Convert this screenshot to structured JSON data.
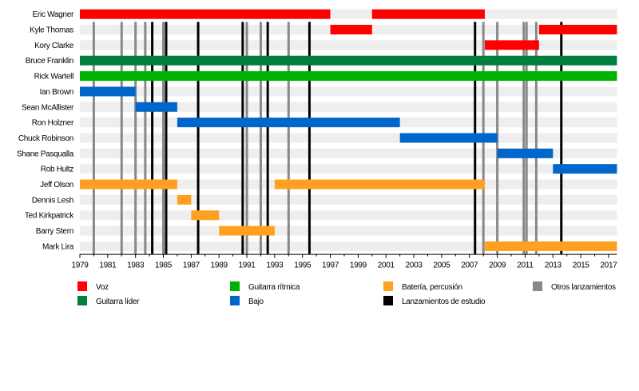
{
  "chart_data": {
    "type": "timeline",
    "title": "",
    "xlabel": "",
    "ylabel": "",
    "xlim": [
      1979,
      2017.6
    ],
    "x_ticks": [
      1979,
      1981,
      1983,
      1985,
      1987,
      1989,
      1991,
      1993,
      1995,
      1997,
      1999,
      2001,
      2003,
      2005,
      2007,
      2009,
      2011,
      2013,
      2015,
      2017
    ],
    "members": [
      "Eric Wagner",
      "Kyle Thomas",
      "Kory Clarke",
      "Bruce Franklin",
      "Rick Wartell",
      "Ian Brown",
      "Sean McAllister",
      "Ron Holzner",
      "Chuck Robinson",
      "Shane Pasqualla",
      "Rob Hultz",
      "Jeff Olson",
      "Dennis Lesh",
      "Ted Kirkpatrick",
      "Barry Stern",
      "Mark Lira"
    ],
    "roles": {
      "voz": {
        "label": "Voz",
        "color": "#ff0000"
      },
      "guitarra_lider": {
        "label": "Guitarra líder",
        "color": "#007f3f"
      },
      "guitarra_ritmica": {
        "label": "Guitarra rítmica",
        "color": "#00b200"
      },
      "bajo": {
        "label": "Bajo",
        "color": "#0066cc"
      },
      "bateria": {
        "label": "Batería, percusión",
        "color": "#ffa020"
      },
      "estudio": {
        "label": "Lanzamientos de estudio",
        "color": "#000000"
      },
      "otros": {
        "label": "Otros lanzamientos",
        "color": "#888888"
      }
    },
    "bars": [
      {
        "member": "Eric Wagner",
        "role": "voz",
        "start": 1979,
        "end": 1997
      },
      {
        "member": "Eric Wagner",
        "role": "voz",
        "start": 2000,
        "end": 2008.1
      },
      {
        "member": "Kyle Thomas",
        "role": "voz",
        "start": 1997,
        "end": 2000
      },
      {
        "member": "Kyle Thomas",
        "role": "voz",
        "start": 2012,
        "end": 2017.6
      },
      {
        "member": "Kory Clarke",
        "role": "voz",
        "start": 2008.1,
        "end": 2012
      },
      {
        "member": "Bruce Franklin",
        "role": "guitarra_lider",
        "start": 1979,
        "end": 2017.6
      },
      {
        "member": "Rick Wartell",
        "role": "guitarra_ritmica",
        "start": 1979,
        "end": 2017.6
      },
      {
        "member": "Ian Brown",
        "role": "bajo",
        "start": 1979,
        "end": 1983
      },
      {
        "member": "Sean McAllister",
        "role": "bajo",
        "start": 1983,
        "end": 1986
      },
      {
        "member": "Ron Holzner",
        "role": "bajo",
        "start": 1986,
        "end": 2002
      },
      {
        "member": "Chuck Robinson",
        "role": "bajo",
        "start": 2002,
        "end": 2009
      },
      {
        "member": "Shane Pasqualla",
        "role": "bajo",
        "start": 2009,
        "end": 2013
      },
      {
        "member": "Rob Hultz",
        "role": "bajo",
        "start": 2013,
        "end": 2017.6
      },
      {
        "member": "Jeff Olson",
        "role": "bateria",
        "start": 1979,
        "end": 1986
      },
      {
        "member": "Jeff Olson",
        "role": "bateria",
        "start": 1993,
        "end": 2008.1
      },
      {
        "member": "Dennis Lesh",
        "role": "bateria",
        "start": 1986,
        "end": 1987
      },
      {
        "member": "Ted Kirkpatrick",
        "role": "bateria",
        "start": 1987,
        "end": 1989
      },
      {
        "member": "Barry Stern",
        "role": "bateria",
        "start": 1989,
        "end": 1993
      },
      {
        "member": "Mark Lira",
        "role": "bateria",
        "start": 2008.1,
        "end": 2017.6
      }
    ],
    "studio_releases": [
      1984.2,
      1985.2,
      1987.5,
      1990.7,
      1992.5,
      1995.5,
      2007.4,
      2013.6
    ],
    "other_releases": [
      1980,
      1982,
      1983,
      1983.7,
      1985,
      1991,
      1992,
      1994,
      2008,
      2009,
      2010.9,
      2011.1,
      2011.8
    ],
    "legend": [
      {
        "key": "voz",
        "label": "Voz"
      },
      {
        "key": "guitarra_lider",
        "label": "Guitarra líder"
      },
      {
        "key": "guitarra_ritmica",
        "label": "Guitarra rítmica"
      },
      {
        "key": "bajo",
        "label": "Bajo"
      },
      {
        "key": "bateria",
        "label": "Batería, percusión"
      },
      {
        "key": "estudio",
        "label": "Lanzamientos de estudio"
      },
      {
        "key": "otros",
        "label": "Otros lanzamientos"
      }
    ],
    "legend_position": "bottom"
  }
}
